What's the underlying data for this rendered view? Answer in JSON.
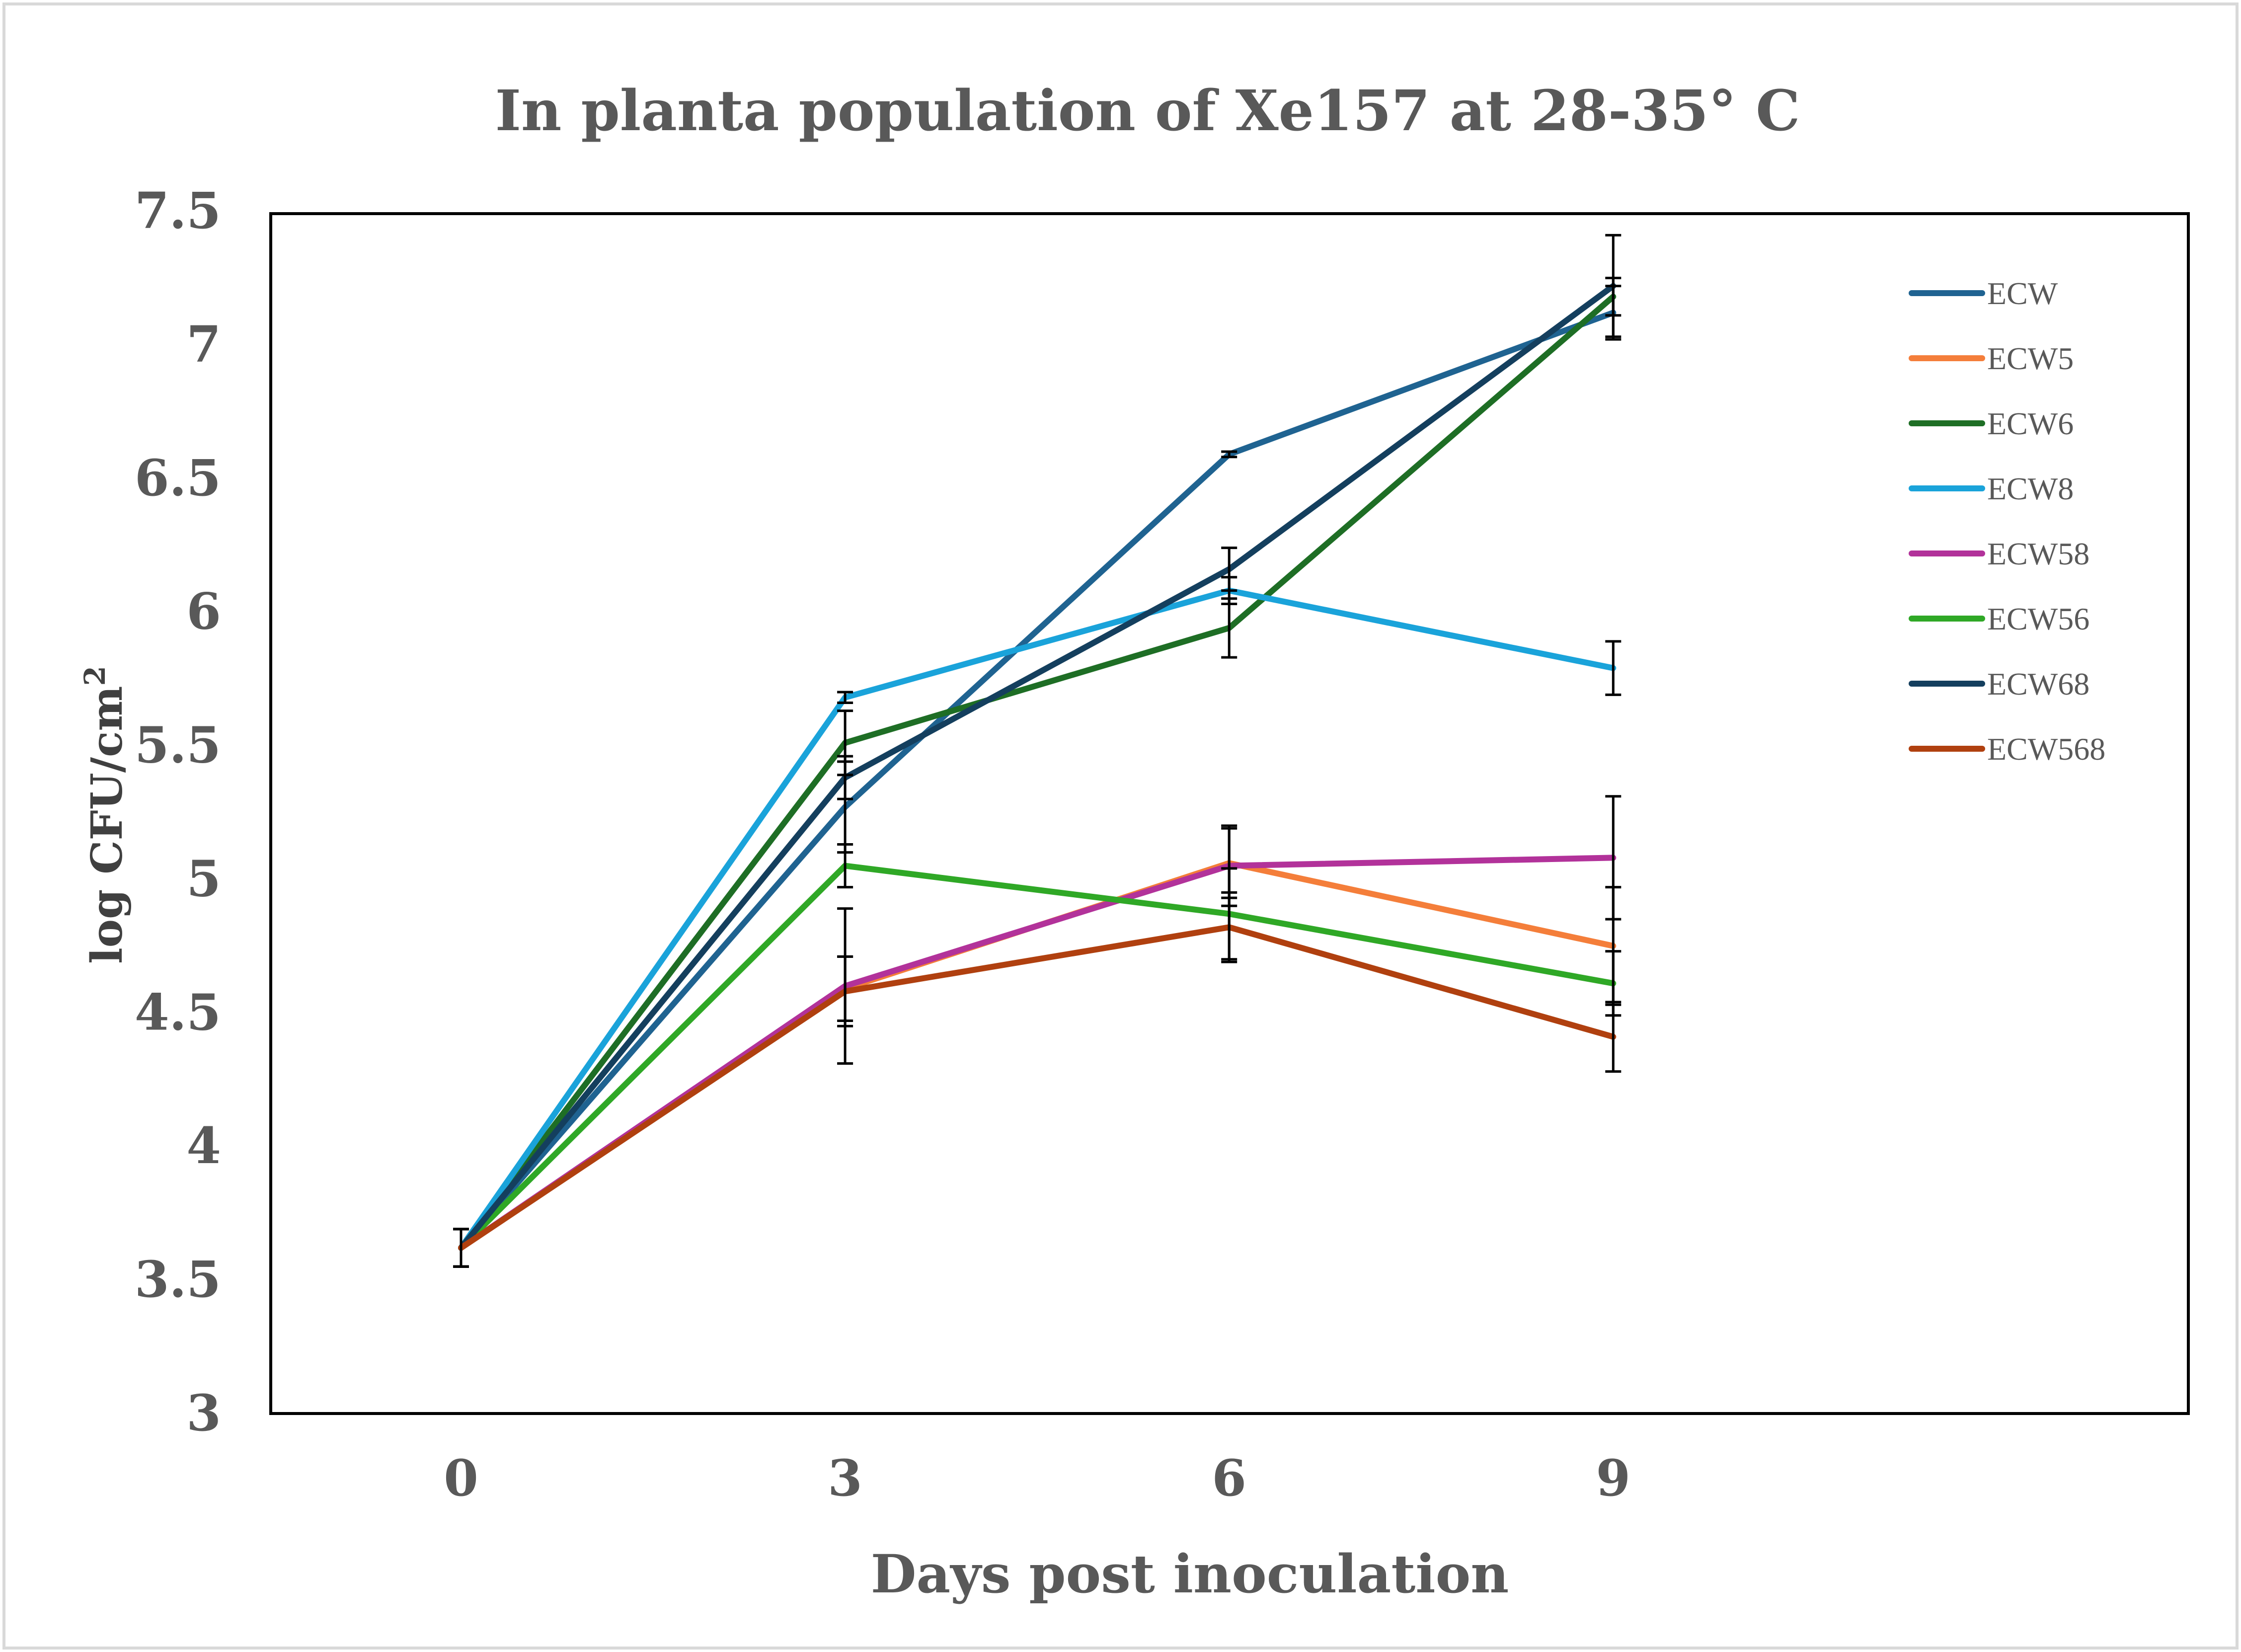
{
  "chart_data": {
    "type": "line",
    "title": "In planta population of Xe157 at 28-35° C",
    "xlabel": "Days post inoculation",
    "ylabel_main": "log CFU/cm",
    "ylabel_sup": "2",
    "x": [
      0,
      3,
      6,
      9
    ],
    "x_tick_labels": [
      "0",
      "3",
      "6",
      "9"
    ],
    "ylim": [
      3,
      7.5
    ],
    "y_ticks": [
      3,
      3.5,
      4,
      4.5,
      5,
      5.5,
      6,
      6.5,
      7,
      7.5
    ],
    "y_tick_labels": [
      "3",
      "3.5",
      "4",
      "4.5",
      "5",
      "5.5",
      "6",
      "6.5",
      "7",
      "7.5"
    ],
    "grid": false,
    "legend_position": "top-right",
    "series": [
      {
        "name": "ECW",
        "color": "#1F6391",
        "values": [
          3.62,
          5.27,
          6.59,
          7.12
        ],
        "err": [
          0.07,
          0.17,
          0.01,
          0.1
        ]
      },
      {
        "name": "ECW5",
        "color": "#F47E3A",
        "values": [
          3.62,
          4.59,
          5.06,
          4.75
        ],
        "err": [
          0.07,
          0.12,
          0.13,
          0.22
        ]
      },
      {
        "name": "ECW6",
        "color": "#1E6E25",
        "values": [
          3.62,
          5.51,
          5.94,
          7.18
        ],
        "err": [
          0.07,
          0.12,
          0.11,
          0.07
        ]
      },
      {
        "name": "ECW8",
        "color": "#1AA3DA",
        "values": [
          3.62,
          5.68,
          6.08,
          5.79
        ],
        "err": [
          0.07,
          0.02,
          0.05,
          0.1
        ]
      },
      {
        "name": "ECW58",
        "color": "#B2329A",
        "values": [
          3.62,
          4.6,
          5.05,
          5.08
        ],
        "err": [
          0.07,
          0.29,
          0.15,
          0.23
        ]
      },
      {
        "name": "ECW56",
        "color": "#2FA826",
        "values": [
          3.62,
          5.05,
          4.87,
          4.61
        ],
        "err": [
          0.07,
          0.08,
          0.17,
          0.12
        ]
      },
      {
        "name": "ECW68",
        "color": "#143F5E",
        "values": [
          3.62,
          5.38,
          6.16,
          7.22
        ],
        "err": [
          0.07,
          0.08,
          0.08,
          0.19
        ]
      },
      {
        "name": "ECW568",
        "color": "#B0400F",
        "values": [
          3.62,
          4.58,
          4.82,
          4.41
        ],
        "err": [
          0.07,
          0.13,
          0.13,
          0.13
        ]
      }
    ]
  }
}
